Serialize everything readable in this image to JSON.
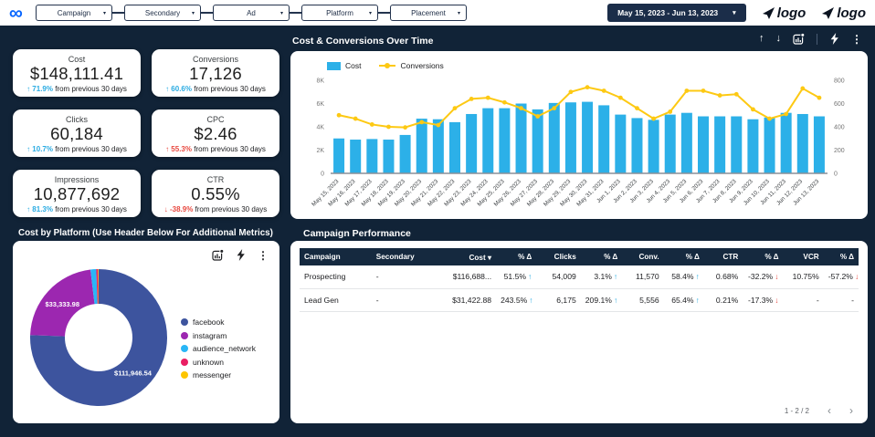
{
  "glyphs": {
    "meta": "∞",
    "caret": "▾",
    "arrow_up": "↑",
    "arrow_down": "↓",
    "more": "⋮",
    "chev_left": "‹",
    "chev_right": "›"
  },
  "colors": {
    "background": "#112337",
    "accent_blue": "#2cb0e8",
    "accent_yellow": "#fdc913",
    "delta_up_blue": "#29abe2",
    "delta_down_red": "#e8483f",
    "table_header": "#15293f"
  },
  "topbar": {
    "filters": [
      {
        "label": "Campaign"
      },
      {
        "label": "Secondary"
      },
      {
        "label": "Ad"
      },
      {
        "label": "Platform"
      },
      {
        "label": "Placement"
      }
    ],
    "date_range": {
      "label": "May 15, 2023 - Jun 13, 2023"
    },
    "logos": [
      {
        "text": "logo"
      },
      {
        "text": "logo"
      }
    ]
  },
  "kpi": {
    "cards": [
      {
        "label": "Cost",
        "value": "$148,111.41",
        "direction": "up",
        "delta": "71.9%",
        "delta_color": "#29abe2",
        "suffix": "from previous 30 days"
      },
      {
        "label": "Conversions",
        "value": "17,126",
        "direction": "up",
        "delta": "60.6%",
        "delta_color": "#29abe2",
        "suffix": "from previous 30 days"
      },
      {
        "label": "Clicks",
        "value": "60,184",
        "direction": "up",
        "delta": "10.7%",
        "delta_color": "#29abe2",
        "suffix": "from previous 30 days"
      },
      {
        "label": "CPC",
        "value": "$2.46",
        "direction": "up",
        "delta": "55.3%",
        "delta_color": "#e8483f",
        "suffix": "from previous 30 days"
      },
      {
        "label": "Impressions",
        "value": "10,877,692",
        "direction": "up",
        "delta": "81.3%",
        "delta_color": "#29abe2",
        "suffix": "from previous 30 days"
      },
      {
        "label": "CTR",
        "value": "0.55%",
        "direction": "down",
        "delta": "-38.9%",
        "delta_color": "#e8483f",
        "suffix": "from previous 30 days"
      }
    ]
  },
  "combo": {
    "title": "Cost & Conversions Over Time"
  },
  "platform": {
    "title": "Cost by Platform (Use Header Below For Additional Metrics)"
  },
  "perf": {
    "title": "Campaign Performance",
    "pagination": "1 - 2 / 2",
    "columns": [
      "Campaign",
      "Secondary",
      "Cost ▾",
      "% Δ",
      "Clicks",
      "% Δ",
      "Conv.",
      "% Δ",
      "CTR",
      "% Δ",
      "VCR",
      "% Δ"
    ],
    "rows": [
      {
        "cells": [
          {
            "t": "Prospecting"
          },
          {
            "t": "-"
          },
          {
            "t": "$116,688..."
          },
          {
            "t": "51.5%",
            "d": "up"
          },
          {
            "t": "54,009"
          },
          {
            "t": "3.1%",
            "d": "up"
          },
          {
            "t": "11,570"
          },
          {
            "t": "58.4%",
            "d": "up"
          },
          {
            "t": "0.68%"
          },
          {
            "t": "-32.2%",
            "d": "down"
          },
          {
            "t": "10.75%"
          },
          {
            "t": "-57.2%",
            "d": "down"
          }
        ]
      },
      {
        "cells": [
          {
            "t": "Lead Gen"
          },
          {
            "t": "-"
          },
          {
            "t": "$31,422.88"
          },
          {
            "t": "243.5%",
            "d": "up"
          },
          {
            "t": "6,175"
          },
          {
            "t": "209.1%",
            "d": "up"
          },
          {
            "t": "5,556"
          },
          {
            "t": "65.4%",
            "d": "up"
          },
          {
            "t": "0.21%"
          },
          {
            "t": "-17.3%",
            "d": "down"
          },
          {
            "t": "-"
          },
          {
            "t": "-"
          }
        ]
      }
    ]
  },
  "chart_data": [
    {
      "type": "bar+line",
      "title": "Cost & Conversions Over Time",
      "grid": false,
      "legend_position": "top-left",
      "categories": [
        "May 15, 2023",
        "May 16, 2023",
        "May 17, 2023",
        "May 18, 2023",
        "May 19, 2023",
        "May 20, 2023",
        "May 21, 2023",
        "May 22, 2023",
        "May 23, 2023",
        "May 24, 2023",
        "May 25, 2023",
        "May 26, 2023",
        "May 27, 2023",
        "May 28, 2023",
        "May 29, 2023",
        "May 30, 2023",
        "May 31, 2023",
        "Jun 1, 2023",
        "Jun 2, 2023",
        "Jun 3, 2023",
        "Jun 4, 2023",
        "Jun 5, 2023",
        "Jun 6, 2023",
        "Jun 7, 2023",
        "Jun 8, 2023",
        "Jun 9, 2023",
        "Jun 10, 2023",
        "Jun 11, 2023",
        "Jun 12, 2023",
        "Jun 13, 2023"
      ],
      "series": [
        {
          "name": "Cost",
          "type": "bar",
          "axis": "left",
          "color": "#2cb0e8",
          "values": [
            3000,
            2900,
            2950,
            2900,
            3300,
            4700,
            4650,
            4400,
            5100,
            5600,
            5600,
            6000,
            5500,
            6050,
            6100,
            6150,
            5850,
            5050,
            4750,
            4600,
            5050,
            5200,
            4900,
            4900,
            4900,
            4650,
            4800,
            5200,
            5100,
            4900
          ]
        },
        {
          "name": "Conversions",
          "type": "line",
          "axis": "right",
          "color": "#fdc913",
          "values": [
            500,
            470,
            420,
            400,
            395,
            440,
            415,
            560,
            640,
            650,
            610,
            560,
            490,
            560,
            700,
            740,
            710,
            650,
            560,
            470,
            530,
            710,
            710,
            670,
            680,
            550,
            470,
            510,
            730,
            650
          ]
        }
      ],
      "y_left": {
        "min": 0,
        "max": 8000,
        "ticks": [
          "0",
          "2K",
          "4K",
          "6K",
          "8K"
        ]
      },
      "y_right": {
        "min": 0,
        "max": 800,
        "ticks": [
          "0",
          "200",
          "400",
          "600",
          "800"
        ]
      }
    },
    {
      "type": "pie",
      "donut": true,
      "title": "Cost by Platform",
      "legend_position": "right",
      "slices": [
        {
          "name": "facebook",
          "value": 111946.54,
          "color": "#3d549e",
          "label": "$111,946.54"
        },
        {
          "name": "instagram",
          "value": 33333.98,
          "color": "#9c27b0",
          "label": "$33,333.98"
        },
        {
          "name": "audience_network",
          "value": 2000,
          "color": "#29b6f6"
        },
        {
          "name": "unknown",
          "value": 600,
          "color": "#e91e63"
        },
        {
          "name": "messenger",
          "value": 231,
          "color": "#fdc500"
        }
      ]
    }
  ]
}
